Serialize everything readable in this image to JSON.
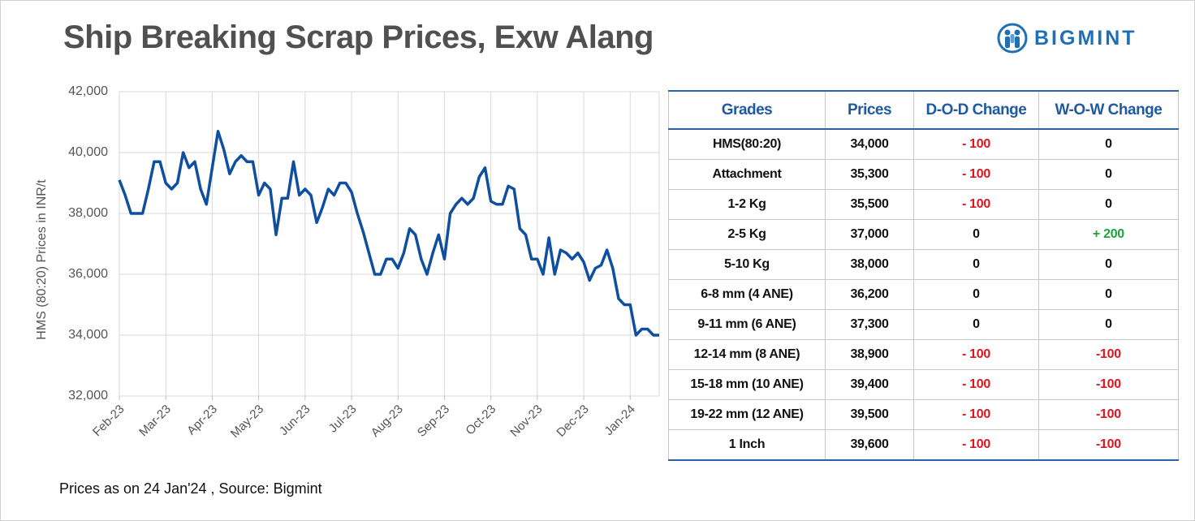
{
  "title": "Ship Breaking Scrap Prices, Exw Alang",
  "logo": "BIGMINT",
  "chart_data": {
    "type": "line",
    "y_label": "HMS (80:20) Prices in INR/t",
    "categories": [
      "Feb-23",
      null,
      null,
      null,
      null,
      null,
      null,
      null,
      "Mar-23",
      null,
      null,
      null,
      null,
      null,
      null,
      null,
      "Apr-23",
      null,
      null,
      null,
      null,
      null,
      null,
      null,
      "May-23",
      null,
      null,
      null,
      null,
      null,
      null,
      null,
      "Jun-23",
      null,
      null,
      null,
      null,
      null,
      null,
      null,
      "Jul-23",
      null,
      null,
      null,
      null,
      null,
      null,
      null,
      "Aug-23",
      null,
      null,
      null,
      null,
      null,
      null,
      null,
      "Sep-23",
      null,
      null,
      null,
      null,
      null,
      null,
      null,
      "Oct-23",
      null,
      null,
      null,
      null,
      null,
      null,
      null,
      "Nov-23",
      null,
      null,
      null,
      null,
      null,
      null,
      null,
      "Dec-23",
      null,
      null,
      null,
      null,
      null,
      null,
      null,
      "Jan-24",
      null,
      null,
      null,
      null,
      null
    ],
    "series": [
      {
        "name": "HMS (80:20)",
        "color": "#0f4fa0",
        "values": [
          39100,
          38600,
          38000,
          38000,
          38000,
          38800,
          39700,
          39700,
          39000,
          38800,
          39000,
          40000,
          39500,
          39700,
          38800,
          38300,
          39500,
          40700,
          40100,
          39300,
          39700,
          39900,
          39700,
          39700,
          38600,
          39000,
          38800,
          37300,
          38500,
          38500,
          39700,
          38600,
          38800,
          38600,
          37700,
          38200,
          38800,
          38600,
          39000,
          39000,
          38700,
          38000,
          37400,
          36700,
          36000,
          36000,
          36500,
          36500,
          36200,
          36700,
          37500,
          37300,
          36500,
          36000,
          36700,
          37300,
          36500,
          38000,
          38300,
          38500,
          38300,
          38500,
          39200,
          39500,
          38400,
          38300,
          38300,
          38900,
          38800,
          37500,
          37300,
          36500,
          36500,
          36000,
          37200,
          36000,
          36800,
          36700,
          36500,
          36700,
          36400,
          35800,
          36200,
          36300,
          36800,
          36200,
          35200,
          35000,
          35000,
          34000,
          34200,
          34200,
          34000,
          34000
        ]
      }
    ],
    "ylim": [
      32000,
      42000
    ],
    "yticks": [
      {
        "value": 32000,
        "label": "32,000"
      },
      {
        "value": 34000,
        "label": "34,000"
      },
      {
        "value": 36000,
        "label": "36,000"
      },
      {
        "value": 38000,
        "label": "38,000"
      },
      {
        "value": 40000,
        "label": "40,000"
      },
      {
        "value": 42000,
        "label": "42,000"
      }
    ],
    "grid": true
  },
  "table": {
    "header": [
      "Grades",
      "Prices",
      "D-O-D Change",
      "W-O-W Change"
    ],
    "rows": [
      [
        "HMS(80:20)",
        "34,000",
        "- 100",
        "0"
      ],
      [
        "Attachment",
        "35,300",
        "- 100",
        "0"
      ],
      [
        "1-2 Kg",
        "35,500",
        "- 100",
        "0"
      ],
      [
        "2-5 Kg",
        "37,000",
        "0",
        "+ 200"
      ],
      [
        "5-10 Kg",
        "38,000",
        "0",
        "0"
      ],
      [
        "6-8 mm (4 ANE)",
        "36,200",
        "0",
        "0"
      ],
      [
        "9-11 mm (6 ANE)",
        "37,300",
        "0",
        "0"
      ],
      [
        "12-14 mm (8 ANE)",
        "38,900",
        "- 100",
        "-100"
      ],
      [
        "15-18 mm (10 ANE)",
        "39,400",
        "- 100",
        "-100"
      ],
      [
        "19-22 mm (12 ANE)",
        "39,500",
        "- 100",
        "-100"
      ],
      [
        "1 Inch",
        "39,600",
        "- 100",
        "-100"
      ]
    ]
  },
  "footer": "Prices as on 24 Jan'24 , Source: Bigmint"
}
